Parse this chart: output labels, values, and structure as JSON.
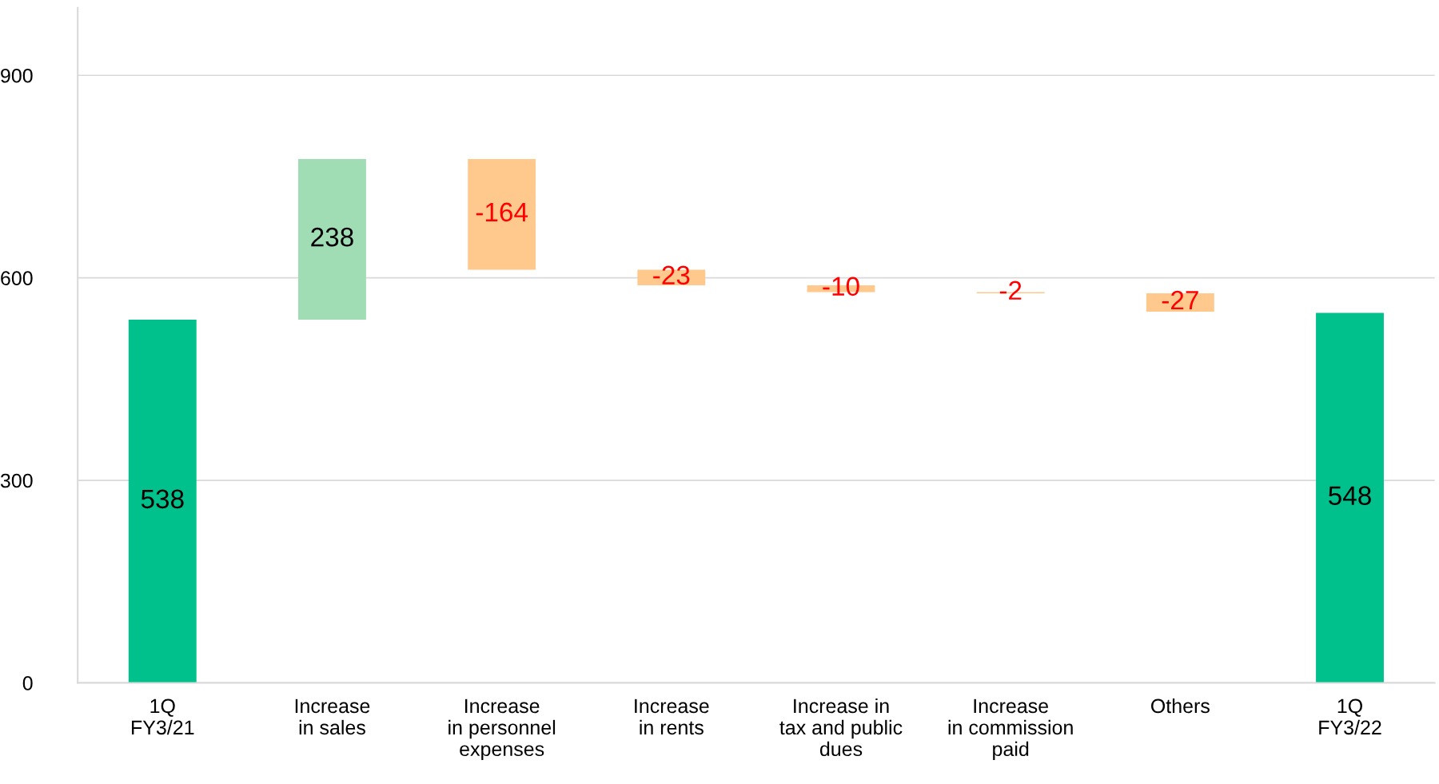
{
  "chart_data": {
    "type": "bar",
    "categories": [
      "1Q\nFY3/21",
      "Increase\nin sales",
      "Increase\nin personnel\nexpenses",
      "Increase\nin rents",
      "Increase in\ntax and public\ndues",
      "Increase\nin commission\npaid",
      "Others",
      "1Q\nFY3/22"
    ],
    "values": [
      538,
      238,
      -164,
      -23,
      -10,
      -2,
      -27,
      548
    ],
    "base": [
      0,
      538,
      776,
      612,
      589,
      579,
      577,
      0
    ],
    "colors": [
      "#00c08b",
      "#a0dcb4",
      "#ffc88c",
      "#ffc88c",
      "#ffc88c",
      "#ffc88c",
      "#ffc88c",
      "#00c08b"
    ],
    "data_labels": true,
    "ylim": [
      0,
      1000
    ],
    "yticks": [
      0,
      300,
      600,
      900
    ],
    "grid": "y",
    "legend": false
  }
}
